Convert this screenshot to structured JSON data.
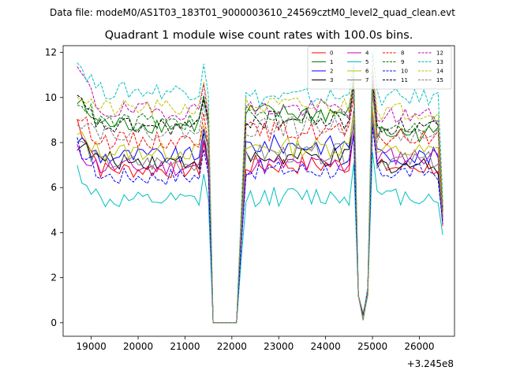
{
  "chart_data": {
    "type": "line",
    "suptitle": "Data file: modeM0/AS1T03_183T01_9000003610_24569cztM0_level2_quad_clean.evt",
    "title": "Quadrant 1 module wise count rates with 100.0s bins.",
    "xlabel": "",
    "ylabel": "",
    "offset_text": "+3.245e8",
    "xlim": [
      18400,
      26750
    ],
    "ylim": [
      -0.6,
      12.3
    ],
    "x_ticks": [
      19000,
      20000,
      21000,
      22000,
      23000,
      24000,
      25000,
      26000
    ],
    "x_tick_labels": [
      "19000",
      "20000",
      "21000",
      "22000",
      "23000",
      "24000",
      "25000",
      "26000"
    ],
    "y_ticks": [
      0,
      2,
      4,
      6,
      8,
      10,
      12
    ],
    "y_tick_labels": [
      "0",
      "2",
      "4",
      "6",
      "8",
      "10",
      "12"
    ],
    "x_note": "x values are seconds relative to offset 3.245e8; 100 s bins",
    "segments": [
      {
        "x_start": 18700,
        "x_end": 21500,
        "step": 100
      },
      {
        "x_start": 21600,
        "x_end": 22100,
        "step": 100,
        "zero": true
      },
      {
        "x_start": 22200,
        "x_end": 24700,
        "step": 100
      },
      {
        "x_start": 24800,
        "x_end": 24900,
        "step": 100,
        "dip": true
      },
      {
        "x_start": 25000,
        "x_end": 26500,
        "step": 100
      }
    ],
    "series": [
      {
        "name": "0",
        "color": "#ff0000",
        "dash": "solid",
        "levels": {
          "start": 9.0,
          "seg1": 6.8,
          "seg2": 7.0,
          "seg3": 6.9,
          "end": 4.3
        }
      },
      {
        "name": "1",
        "color": "#008000",
        "dash": "solid",
        "levels": {
          "start": 9.8,
          "seg1": 8.8,
          "seg2": 9.3,
          "seg3": 8.4,
          "end": 5.0
        }
      },
      {
        "name": "2",
        "color": "#0000ff",
        "dash": "solid",
        "levels": {
          "start": 8.2,
          "seg1": 7.4,
          "seg2": 7.9,
          "seg3": 7.4,
          "end": 4.6
        }
      },
      {
        "name": "3",
        "color": "#000000",
        "dash": "solid",
        "levels": {
          "start": 8.0,
          "seg1": 7.2,
          "seg2": 7.3,
          "seg3": 7.0,
          "end": 4.5
        }
      },
      {
        "name": "4",
        "color": "#bf00bf",
        "dash": "solid",
        "levels": {
          "start": 7.6,
          "seg1": 6.9,
          "seg2": 7.0,
          "seg3": 7.4,
          "end": 4.6
        }
      },
      {
        "name": "5",
        "color": "#00bfbf",
        "dash": "solid",
        "levels": {
          "start": 6.8,
          "seg1": 5.4,
          "seg2": 5.6,
          "seg3": 5.6,
          "end": 3.9
        }
      },
      {
        "name": "6",
        "color": "#bfbf00",
        "dash": "solid",
        "levels": {
          "start": 8.3,
          "seg1": 7.6,
          "seg2": 7.8,
          "seg3": 7.6,
          "end": 4.8
        }
      },
      {
        "name": "7",
        "color": "#808080",
        "dash": "solid",
        "levels": {
          "start": 8.1,
          "seg1": 7.1,
          "seg2": 7.5,
          "seg3": 7.2,
          "end": 4.5
        }
      },
      {
        "name": "8",
        "color": "#ff0000",
        "dash": "dashed",
        "levels": {
          "start": 9.2,
          "seg1": 8.1,
          "seg2": 8.5,
          "seg3": 8.2,
          "end": 4.8
        }
      },
      {
        "name": "9",
        "color": "#008000",
        "dash": "dashed",
        "levels": {
          "start": 10.0,
          "seg1": 8.9,
          "seg2": 9.2,
          "seg3": 8.8,
          "end": 5.0
        }
      },
      {
        "name": "10",
        "color": "#0000ff",
        "dash": "dashed",
        "levels": {
          "start": 7.9,
          "seg1": 6.5,
          "seg2": 6.8,
          "seg3": 6.7,
          "end": 4.4
        }
      },
      {
        "name": "11",
        "color": "#000000",
        "dash": "dashed",
        "levels": {
          "start": 9.9,
          "seg1": 8.7,
          "seg2": 9.0,
          "seg3": 8.7,
          "end": 5.0
        }
      },
      {
        "name": "12",
        "color": "#bf00bf",
        "dash": "dashed",
        "levels": {
          "start": 11.3,
          "seg1": 9.4,
          "seg2": 9.5,
          "seg3": 9.2,
          "end": 5.3
        }
      },
      {
        "name": "13",
        "color": "#00bfbf",
        "dash": "dashed",
        "levels": {
          "start": 11.6,
          "seg1": 10.3,
          "seg2": 10.0,
          "seg3": 10.0,
          "end": 5.5
        }
      },
      {
        "name": "14",
        "color": "#bfbf00",
        "dash": "dashed",
        "levels": {
          "start": 10.2,
          "seg1": 9.5,
          "seg2": 9.6,
          "seg3": 9.4,
          "end": 5.2
        }
      },
      {
        "name": "15",
        "color": "#808080",
        "dash": "dashed",
        "levels": {
          "start": 9.1,
          "seg1": 8.5,
          "seg2": 8.7,
          "seg3": 8.3,
          "end": 4.9
        }
      }
    ],
    "legend": {
      "placement": "top-right",
      "columns": 4
    },
    "grid": false
  }
}
